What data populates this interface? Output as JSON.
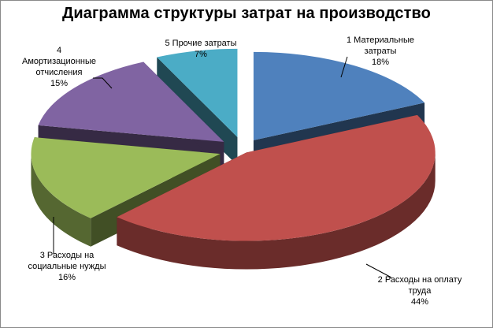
{
  "chart_data": {
    "type": "pie",
    "title": "Диаграмма структуры затрат на производство",
    "three_d": true,
    "exploded": true,
    "legend": "none",
    "slices": [
      {
        "name_lines": [
          "1 Материальные",
          "затраты"
        ],
        "value_text": "18%",
        "value": 18,
        "color": "#4f81bd"
      },
      {
        "name_lines": [
          "2 Расходы на оплату",
          "труда"
        ],
        "value_text": "44%",
        "value": 44,
        "color": "#c0504d"
      },
      {
        "name_lines": [
          "3 Расходы на",
          "социальные нужды"
        ],
        "value_text": "16%",
        "value": 16,
        "color": "#9bbb59"
      },
      {
        "name_lines": [
          "4",
          "Амортизационные",
          "отчисления"
        ],
        "value_text": "15%",
        "value": 15,
        "color": "#8064a2"
      },
      {
        "name_lines": [
          "5 Прочие затраты"
        ],
        "value_text": "7%",
        "value": 7,
        "color": "#4bacc6"
      }
    ]
  }
}
